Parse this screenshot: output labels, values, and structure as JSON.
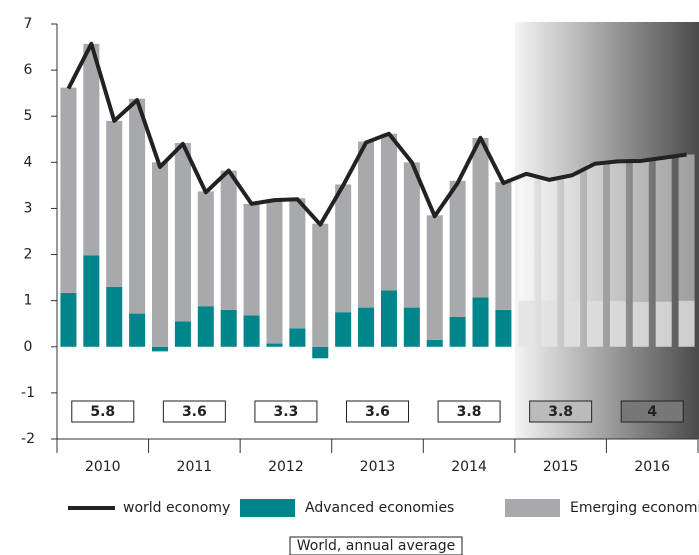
{
  "chart_data": {
    "type": "bar",
    "categories": [
      null,
      null,
      null,
      null,
      null,
      null,
      null,
      null,
      null,
      null,
      null,
      null,
      null,
      null,
      null,
      null,
      null,
      null,
      null,
      null,
      null,
      null,
      null,
      null,
      null,
      null,
      null,
      null
    ],
    "x_groups": [
      "2010",
      "2011",
      "2012",
      "2013",
      "2014",
      "2015",
      "2016"
    ],
    "forecast_start": 20,
    "series": [
      {
        "name": "Advanced economies",
        "color": "#00858b",
        "stack": true,
        "values": [
          1.17,
          1.98,
          1.3,
          0.72,
          -0.1,
          0.55,
          0.88,
          0.8,
          0.68,
          0.07,
          0.4,
          -0.25,
          0.75,
          0.85,
          1.22,
          0.85,
          0.15,
          0.65,
          1.07,
          0.8,
          1.0,
          1.0,
          1.0,
          1.0,
          1.0,
          0.97,
          0.98,
          1.0
        ]
      },
      {
        "name": "Emerging economies",
        "color": "#a8a9ad",
        "stack": true,
        "values": [
          4.45,
          4.59,
          3.6,
          4.66,
          4.0,
          3.87,
          2.49,
          3.02,
          2.42,
          3.13,
          2.82,
          2.67,
          2.77,
          3.6,
          3.4,
          3.15,
          2.7,
          2.95,
          3.46,
          2.77,
          2.75,
          2.62,
          2.72,
          2.97,
          3.02,
          3.08,
          3.12,
          3.17
        ]
      },
      {
        "name": "world economy",
        "color": "#222222",
        "line": true,
        "values": [
          5.6,
          6.57,
          4.9,
          5.35,
          3.9,
          4.4,
          3.35,
          3.82,
          3.1,
          3.18,
          3.2,
          2.65,
          3.5,
          4.43,
          4.62,
          4.0,
          2.83,
          3.55,
          4.53,
          3.55,
          3.75,
          3.62,
          3.72,
          3.97,
          4.02,
          4.03,
          4.1,
          4.17
        ]
      }
    ],
    "annual_average": {
      "label": "World, annual average",
      "values": [
        5.8,
        3.6,
        3.3,
        3.6,
        3.8,
        3.8,
        4.0
      ]
    },
    "ylim": [
      -2,
      7
    ],
    "yticks": [
      -2,
      -1,
      0,
      1,
      2,
      3,
      4,
      5,
      6,
      7
    ],
    "grid": false
  }
}
